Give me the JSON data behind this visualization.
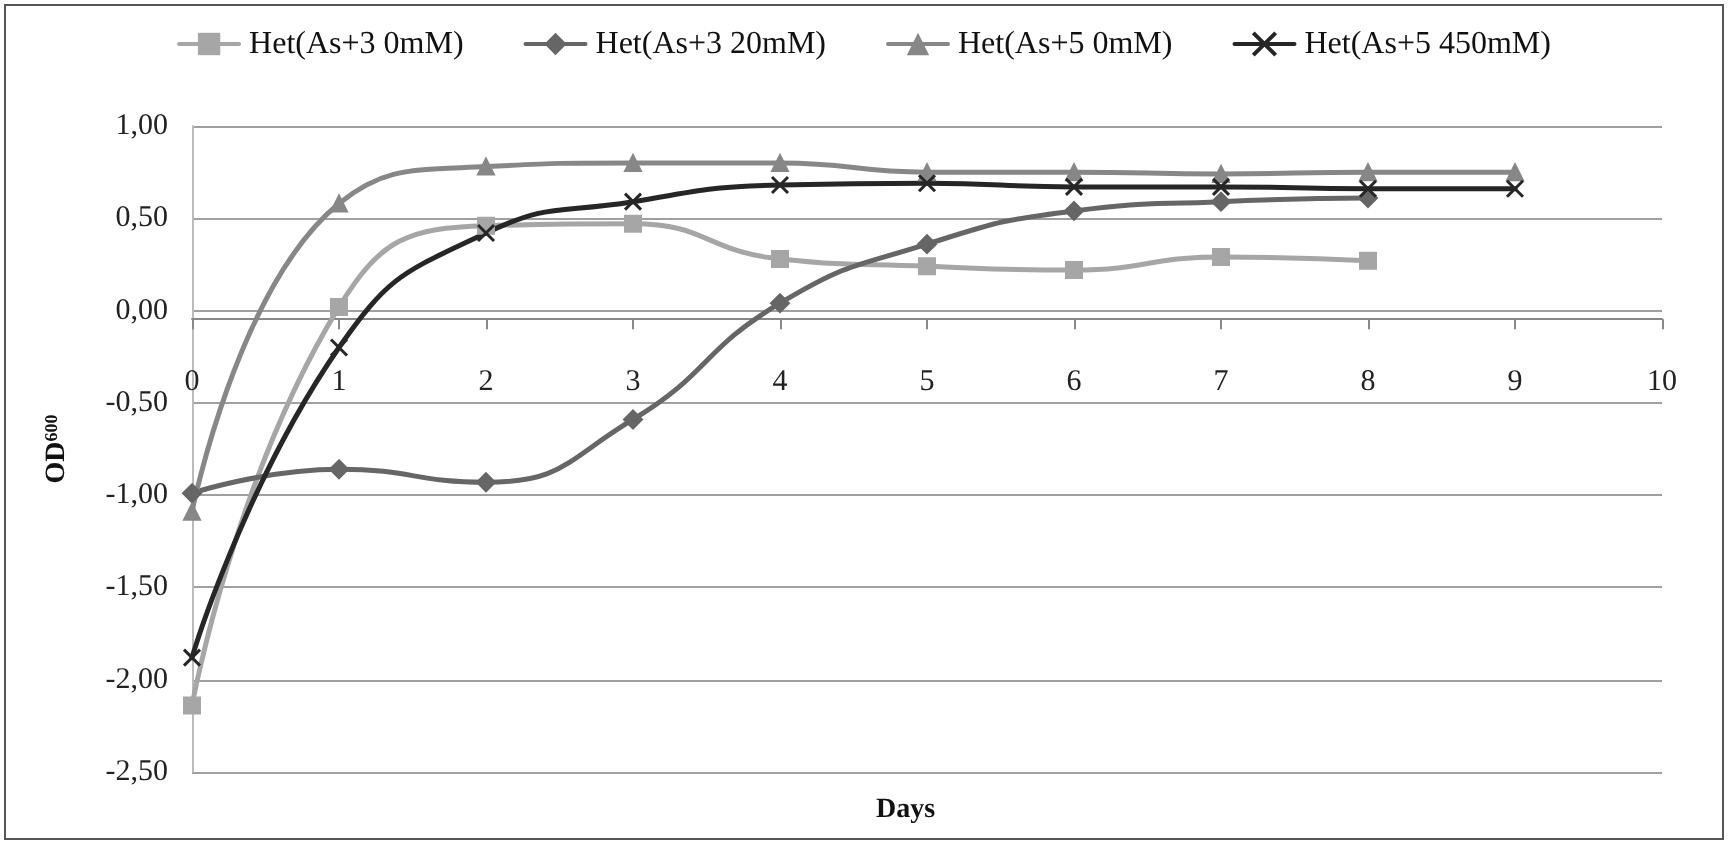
{
  "chart_data": {
    "type": "line",
    "xlabel": "Days",
    "ylabel": "OD$^{600}$",
    "x": [
      0,
      1,
      2,
      3,
      4,
      5,
      6,
      7,
      8,
      9
    ],
    "series": [
      {
        "name": "Het(As+3 0mM)",
        "color": "#a6a6a6",
        "marker": "square",
        "values": [
          -2.14,
          0.02,
          0.46,
          0.47,
          0.28,
          0.24,
          0.22,
          0.29,
          0.27,
          null
        ]
      },
      {
        "name": "Het(As+3 20mM)",
        "color": "#666666",
        "marker": "diamond",
        "values": [
          -0.99,
          -0.86,
          -0.93,
          -0.59,
          0.04,
          0.36,
          0.54,
          0.59,
          0.61,
          null
        ]
      },
      {
        "name": "Het(As+5 0mM)",
        "color": "#878787",
        "marker": "triangle",
        "values": [
          -1.09,
          0.58,
          0.78,
          0.8,
          0.8,
          0.75,
          0.75,
          0.74,
          0.75,
          0.75
        ]
      },
      {
        "name": "Het(As+5 450mM)",
        "color": "#262626",
        "marker": "cross",
        "values": [
          -1.88,
          -0.2,
          0.42,
          0.59,
          0.68,
          0.69,
          0.67,
          0.67,
          0.66,
          0.66
        ]
      }
    ],
    "xlim": [
      0,
      10
    ],
    "xticks": [
      0,
      1,
      2,
      3,
      4,
      5,
      6,
      7,
      8,
      9,
      10
    ],
    "ylim": [
      -2.5,
      1
    ],
    "yticks": [
      {
        "value": -2.5,
        "label": "-2,50"
      },
      {
        "value": -2,
        "label": "-2,00"
      },
      {
        "value": -1.5,
        "label": "-1,50"
      },
      {
        "value": -1,
        "label": "-1,00"
      },
      {
        "value": -0.5,
        "label": "-0,50"
      },
      {
        "value": 0,
        "label": "0,00"
      },
      {
        "value": 0.5,
        "label": "0,50"
      },
      {
        "value": 1,
        "label": "1,00"
      }
    ],
    "grid": "y",
    "legend": "top",
    "line_style": "solid"
  }
}
